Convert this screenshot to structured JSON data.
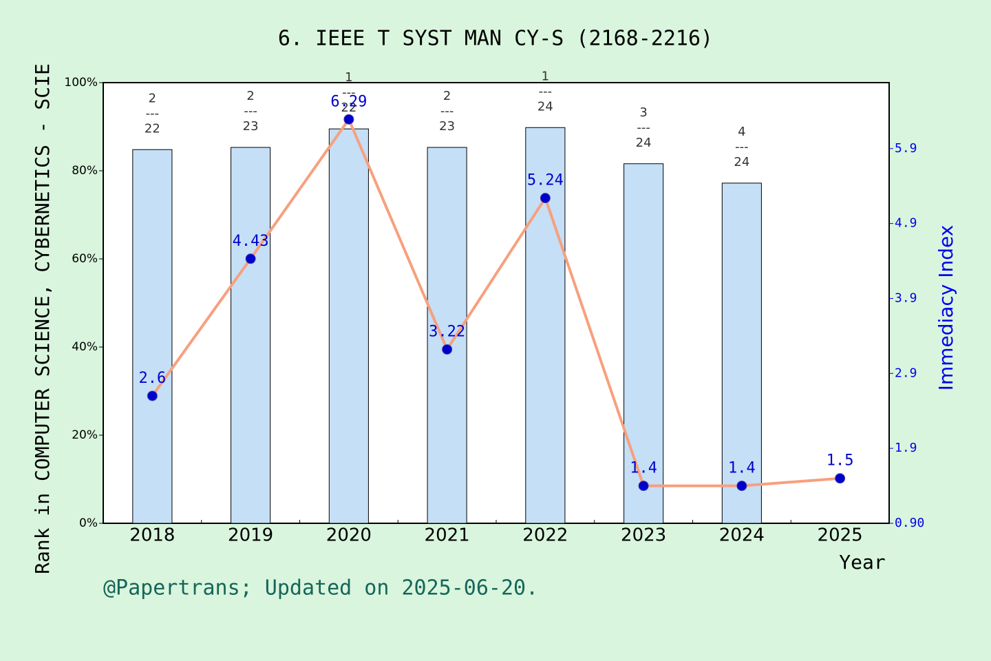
{
  "chart_data": {
    "type": "bar-line",
    "title": "6. IEEE T SYST MAN CY-S (2168-2216)",
    "y_label": "Rank in COMPUTER SCIENCE, CYBERNETICS - SCIE",
    "y2_label": "Immediacy Index",
    "x_label": "Year",
    "footer": "@Papertrans; Updated on 2025-06-20.",
    "categories": [
      "2018",
      "2019",
      "2020",
      "2021",
      "2022",
      "2023",
      "2024",
      "2025"
    ],
    "ylim": [
      0,
      100
    ],
    "yticks": [
      {
        "value": 0,
        "label": "0%"
      },
      {
        "value": 20,
        "label": "20%"
      },
      {
        "value": 40,
        "label": "40%"
      },
      {
        "value": 60,
        "label": "60%"
      },
      {
        "value": 80,
        "label": "80%"
      },
      {
        "value": 100,
        "label": "100%"
      }
    ],
    "y2lim": [
      0.9,
      6.78
    ],
    "y2ticks": [
      {
        "value": 0.9,
        "label": "0.90"
      },
      1.9,
      2.9,
      3.9,
      4.9,
      5.9
    ],
    "series": [
      {
        "type": "bar",
        "color": "#c5dff7",
        "values": [
          84.8,
          85.3,
          89.5,
          85.3,
          89.8,
          81.6,
          77.2,
          null
        ],
        "rank_labels": [
          [
            "2",
            "---",
            "22"
          ],
          [
            "2",
            "---",
            "23"
          ],
          [
            "1",
            "---",
            "22"
          ],
          [
            "2",
            "---",
            "23"
          ],
          [
            "1",
            "---",
            "24"
          ],
          [
            "3",
            "---",
            "24"
          ],
          [
            "4",
            "---",
            "24"
          ],
          null
        ]
      },
      {
        "type": "line",
        "axis": "y2",
        "color": "#f7a07e",
        "marker_color": "#0000cc",
        "values": [
          2.6,
          4.43,
          6.29,
          3.22,
          5.24,
          1.4,
          1.4,
          1.5
        ]
      }
    ]
  }
}
